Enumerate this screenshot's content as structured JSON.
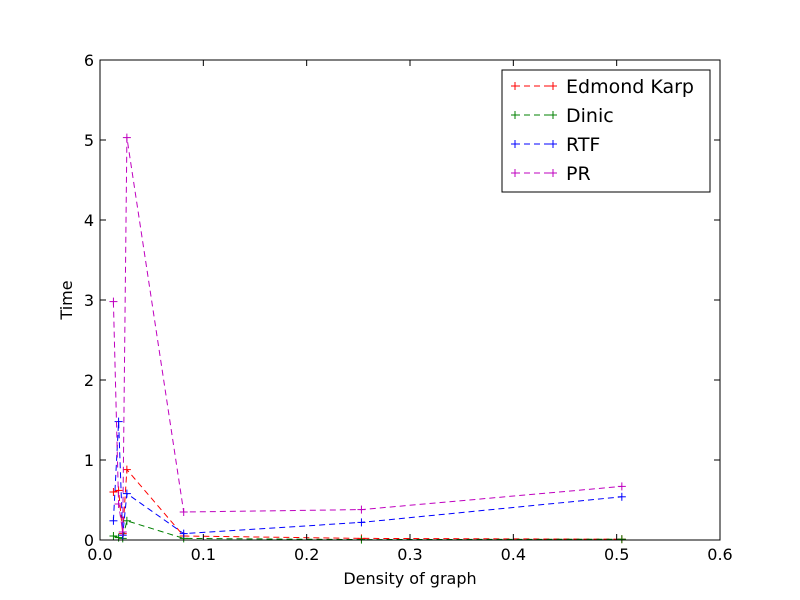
{
  "chart_data": {
    "type": "line",
    "title": "",
    "xlabel": "Density of graph",
    "ylabel": "Time",
    "xlim": [
      0.0,
      0.6
    ],
    "ylim": [
      0,
      6
    ],
    "xticks": [
      "0.0",
      "0.1",
      "0.2",
      "0.3",
      "0.4",
      "0.5",
      "0.6"
    ],
    "yticks": [
      "0",
      "1",
      "2",
      "3",
      "4",
      "5",
      "6"
    ],
    "grid": false,
    "legend_position": "top-right",
    "series": [
      {
        "name": "Edmond Karp",
        "color": "#ff0000",
        "x": [
          0.013,
          0.018,
          0.022,
          0.026,
          0.081,
          0.253,
          0.505
        ],
        "y": [
          0.6,
          0.62,
          0.08,
          0.88,
          0.05,
          0.02,
          0.01
        ]
      },
      {
        "name": "Dinic",
        "color": "#008000",
        "x": [
          0.013,
          0.018,
          0.022,
          0.026,
          0.081,
          0.253,
          0.505
        ],
        "y": [
          0.05,
          0.03,
          0.02,
          0.24,
          0.02,
          0.005,
          0.01
        ]
      },
      {
        "name": "RTF",
        "color": "#0000ff",
        "x": [
          0.013,
          0.018,
          0.022,
          0.026,
          0.081,
          0.253,
          0.505
        ],
        "y": [
          0.24,
          1.48,
          0.06,
          0.58,
          0.08,
          0.22,
          0.54
        ]
      },
      {
        "name": "PR",
        "color": "#bf00bf",
        "x": [
          0.013,
          0.018,
          0.022,
          0.026,
          0.081,
          0.253,
          0.505
        ],
        "y": [
          2.98,
          0.45,
          0.1,
          5.03,
          0.35,
          0.38,
          0.67
        ]
      }
    ]
  }
}
